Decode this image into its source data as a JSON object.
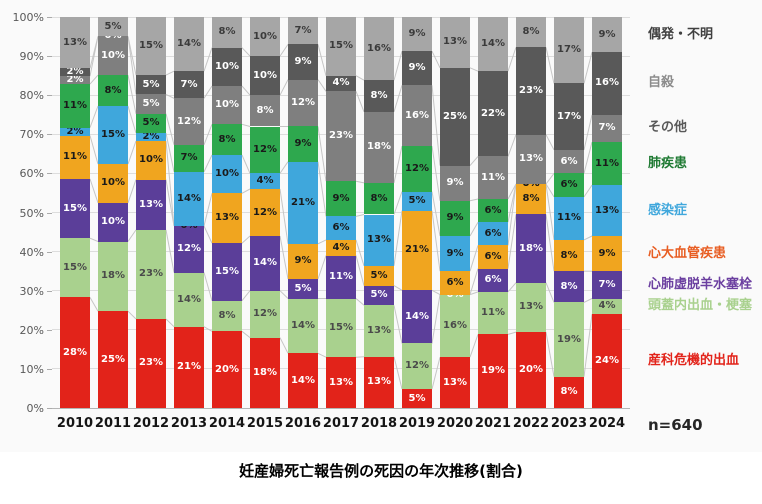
{
  "chart_data": {
    "type": "bar",
    "variant": "stacked-100-percent-column",
    "title": "妊産婦死亡報告例の死因の年次推移(割合)",
    "n_label": "n=640",
    "categories": [
      "2010",
      "2011",
      "2012",
      "2013",
      "2014",
      "2015",
      "2016",
      "2017",
      "2018",
      "2019",
      "2020",
      "2021",
      "2022",
      "2023",
      "2024"
    ],
    "y_axis": {
      "ticks": [
        "0%",
        "10%",
        "20%",
        "30%",
        "40%",
        "50%",
        "60%",
        "70%",
        "80%",
        "90%",
        "100%"
      ],
      "min": 0,
      "max": 100,
      "grid": true
    },
    "legend_position": "right",
    "legend_order_top_to_bottom": [
      "偶発・不明",
      "自殺",
      "その他",
      "肺疾患",
      "感染症",
      "心大血管疾患",
      "心肺虚脱羊水塞栓",
      "頭蓋内出血・梗塞",
      "産科危機的出血"
    ],
    "stack_order": "bottom-to-top",
    "series": [
      {
        "name": "産科危機的出血",
        "color": "#e2231a",
        "label_color": "#ffffff",
        "legend_text_color": "#e2231a",
        "values": [
          28,
          25,
          23,
          21,
          20,
          18,
          14,
          13,
          13,
          5,
          13,
          19,
          20,
          8,
          24
        ]
      },
      {
        "name": "頭蓋内出血・梗塞",
        "color": "#a9d18e",
        "label_color": "#4a4a4a",
        "legend_text_color": "#a9d18e",
        "values": [
          15,
          18,
          23,
          14,
          8,
          12,
          14,
          15,
          13,
          12,
          16,
          11,
          13,
          19,
          4
        ]
      },
      {
        "name": "心肺虚脱羊水塞栓",
        "color": "#5b3e99",
        "label_color": "#ffffff",
        "legend_text_color": "#6b3fa0",
        "values": [
          15,
          10,
          13,
          12,
          15,
          14,
          5,
          11,
          5,
          14,
          0,
          6,
          18,
          8,
          7
        ]
      },
      {
        "name": "心大血管疾患",
        "color": "#f0a51f",
        "label_color": "#1a1a1a",
        "legend_text_color": "#e85d22",
        "values": [
          11,
          10,
          10,
          0,
          13,
          12,
          9,
          4,
          5,
          21,
          6,
          6,
          8,
          8,
          9
        ]
      },
      {
        "name": "感染症",
        "color": "#3fa7dc",
        "label_color": "#1a1a1a",
        "legend_text_color": "#3fa7dc",
        "values": [
          2,
          15,
          2,
          14,
          10,
          4,
          21,
          6,
          13,
          5,
          9,
          6,
          0,
          11,
          13
        ]
      },
      {
        "name": "肺疾患",
        "color": "#2ea84e",
        "label_color": "#1a1a1a",
        "legend_text_color": "#1f7a33",
        "values": [
          11,
          8,
          5,
          7,
          8,
          12,
          9,
          9,
          8,
          12,
          9,
          6,
          0,
          6,
          11
        ]
      },
      {
        "name": "その他",
        "color": "#7f7f7f",
        "label_color": "#ffffff",
        "legend_text_color": "#595959",
        "values": [
          2,
          10,
          5,
          12,
          10,
          8,
          12,
          23,
          18,
          16,
          9,
          11,
          13,
          6,
          7
        ]
      },
      {
        "name": "自殺",
        "color": "#595959",
        "label_color": "#ffffff",
        "legend_text_color": "#8c8c8c",
        "values": [
          2,
          0,
          5,
          7,
          10,
          10,
          9,
          4,
          8,
          9,
          25,
          22,
          23,
          17,
          16
        ]
      },
      {
        "name": "偶発・不明",
        "color": "#a6a6a6",
        "label_color": "#3b3b3b",
        "legend_text_color": "#404040",
        "values": [
          13,
          5,
          15,
          14,
          8,
          10,
          7,
          15,
          16,
          9,
          13,
          14,
          8,
          17,
          9
        ]
      }
    ]
  }
}
